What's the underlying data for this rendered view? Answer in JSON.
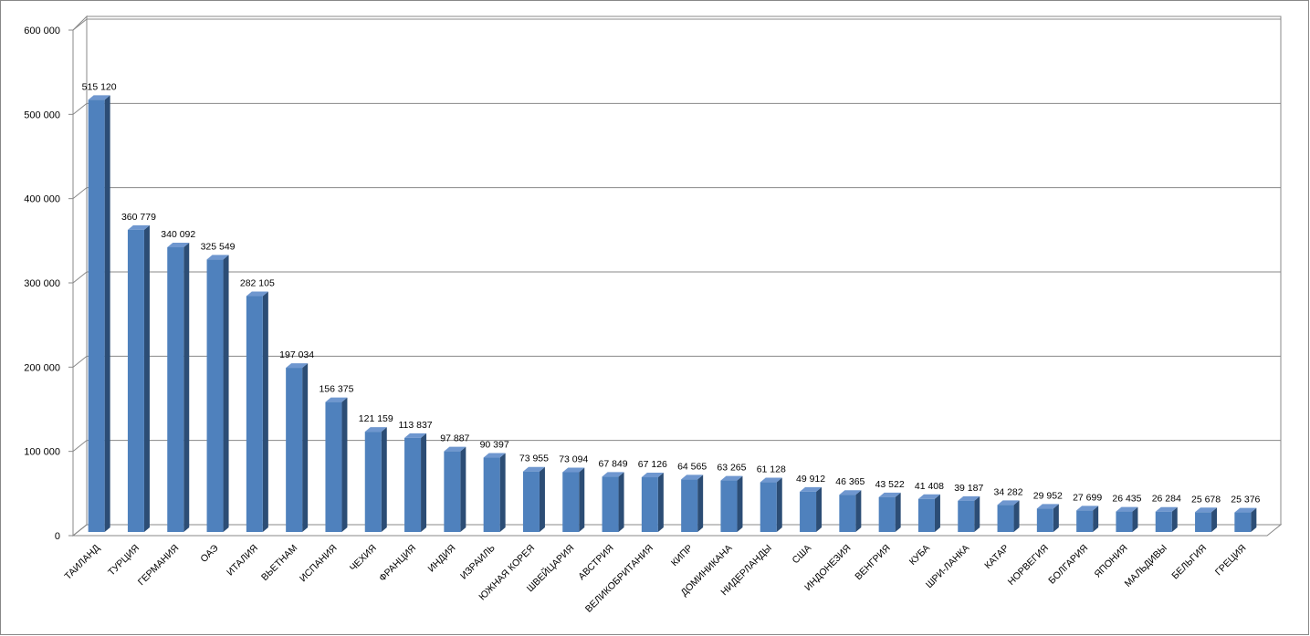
{
  "chart_data": {
    "type": "bar",
    "categories": [
      "ТАИЛАНД",
      "ТУРЦИЯ",
      "ГЕРМАНИЯ",
      "ОАЭ",
      "ИТАЛИЯ",
      "ВЬЕТНАМ",
      "ИСПАНИЯ",
      "ЧЕХИЯ",
      "ФРАНЦИЯ",
      "ИНДИЯ",
      "ИЗРАИЛЬ",
      "ЮЖНАЯ КОРЕЯ",
      "ШВЕЙЦАРИЯ",
      "АВСТРИЯ",
      "ВЕЛИКОБРИТАНИЯ",
      "КИПР",
      "ДОМИНИКАНА",
      "НИДЕРЛАНДЫ",
      "США",
      "ИНДОНЕЗИЯ",
      "ВЕНГРИЯ",
      "КУБА",
      "ШРИ-ЛАНКА",
      "КАТАР",
      "НОРВЕГИЯ",
      "БОЛГАРИЯ",
      "ЯПОНИЯ",
      "МАЛЬДИВЫ",
      "БЕЛЬГИЯ",
      "ГРЕЦИЯ"
    ],
    "values": [
      515120,
      360779,
      340092,
      325549,
      282105,
      197034,
      156375,
      121159,
      113837,
      97887,
      90397,
      73955,
      73094,
      67849,
      67126,
      64565,
      63265,
      61128,
      49912,
      46365,
      43522,
      41408,
      39187,
      34282,
      29952,
      27699,
      26435,
      26284,
      25678,
      25376
    ],
    "value_labels": [
      "515 120",
      "360 779",
      "340 092",
      "325 549",
      "282 105",
      "197 034",
      "156 375",
      "121 159",
      "113 837",
      "97 887",
      "90 397",
      "73 955",
      "73 094",
      "67 849",
      "67 126",
      "64 565",
      "63 265",
      "61 128",
      "49 912",
      "46 365",
      "43 522",
      "41 408",
      "39 187",
      "34 282",
      "29 952",
      "27 699",
      "26 435",
      "26 284",
      "25 678",
      "25 376"
    ],
    "color": "#4f81bd",
    "ylim": [
      0,
      600000
    ],
    "yticks": [
      0,
      {
        "value": 100000,
        "label": "100 000"
      },
      {
        "value": 200000,
        "label": "200 000"
      },
      {
        "value": 300000,
        "label": "300 000"
      },
      {
        "value": 400000,
        "label": "400 000"
      },
      {
        "value": 500000,
        "label": "500 000"
      },
      {
        "value": 600000,
        "label": "600 000"
      }
    ],
    "grid": true
  }
}
